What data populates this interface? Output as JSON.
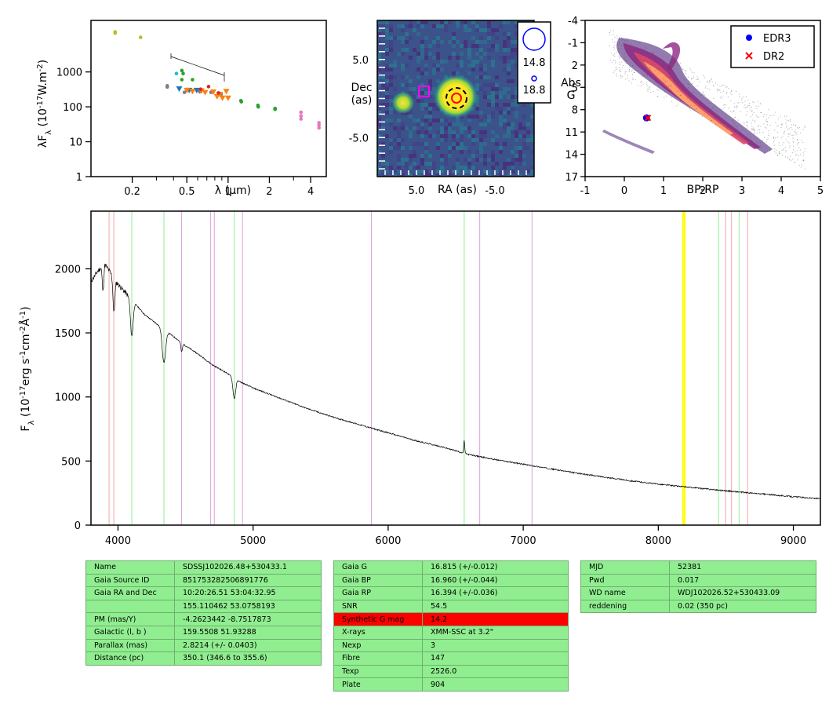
{
  "colors": {
    "sed_g": "#bcbd22",
    "sed_green": "#2ca02c",
    "sed_teal": "#17becf",
    "sed_gray": "#7f7f7f",
    "sed_orange": "#ff7f0e",
    "sed_blue": "#1f77b4",
    "sed_red": "#d62728",
    "sed_pink": "#e377c2",
    "line_pink": "#f4a6a6",
    "line_green": "#90ee90",
    "line_violet": "#dda0dd",
    "line_yellow": "#ffff00",
    "spectrum": "#000000",
    "table_bg": "#90ee90",
    "table_highlight": "#ff0000"
  },
  "charts": [
    {
      "id": "sed",
      "type": "scatter",
      "xlabel": "λ (μm)",
      "ylabel": "λF_λ (10^-17 W.m^-2)",
      "xscale": "log",
      "yscale": "log",
      "xlim": [
        0.1,
        5.2
      ],
      "ylim": [
        1,
        30000
      ],
      "xticks": [
        "0.2",
        "0.5",
        "1",
        "2",
        "4"
      ],
      "yticks": [
        "1",
        "10",
        "100",
        "1000"
      ],
      "series": [
        {
          "color": "sed_g",
          "marker": "o",
          "points": [
            [
              0.15,
              14000
            ],
            [
              0.15,
              13000
            ],
            [
              0.23,
              9800
            ]
          ]
        },
        {
          "color": "sed_teal",
          "marker": "o",
          "points": [
            [
              0.42,
              900
            ]
          ]
        },
        {
          "color": "sed_green",
          "marker": "o",
          "points": [
            [
              0.46,
              1100
            ],
            [
              0.47,
              900
            ],
            [
              0.46,
              600
            ],
            [
              0.55,
              600
            ],
            [
              1.24,
              150
            ],
            [
              1.25,
              140
            ],
            [
              1.65,
              110
            ],
            [
              1.66,
              100
            ],
            [
              2.2,
              90
            ],
            [
              2.2,
              85
            ]
          ]
        },
        {
          "color": "sed_gray",
          "marker": "o",
          "points": [
            [
              0.36,
              400
            ],
            [
              0.36,
              370
            ],
            [
              0.48,
              260
            ],
            [
              0.62,
              270
            ],
            [
              0.75,
              260
            ],
            [
              0.89,
              230
            ]
          ]
        },
        {
          "color": "sed_blue",
          "marker": "v",
          "points": [
            [
              0.44,
              330
            ],
            [
              0.52,
              300
            ],
            [
              0.59,
              300
            ]
          ]
        },
        {
          "color": "sed_orange",
          "marker": "v",
          "points": [
            [
              0.5,
              300
            ],
            [
              0.55,
              280
            ],
            [
              0.64,
              290
            ],
            [
              0.68,
              260
            ],
            [
              0.78,
              270
            ],
            [
              0.83,
              200
            ],
            [
              0.87,
              230
            ],
            [
              0.91,
              180
            ],
            [
              0.97,
              280
            ],
            [
              1.0,
              180
            ]
          ]
        },
        {
          "color": "sed_red",
          "marker": "o",
          "points": [
            [
              0.63,
              320
            ],
            [
              0.72,
              380
            ],
            [
              0.85,
              250
            ]
          ]
        },
        {
          "color": "sed_pink",
          "marker": "o",
          "points": [
            [
              3.4,
              70
            ],
            [
              3.4,
              55
            ],
            [
              3.4,
              45
            ],
            [
              4.6,
              35
            ],
            [
              4.6,
              30
            ],
            [
              4.6,
              25
            ]
          ]
        }
      ]
    },
    {
      "id": "image",
      "type": "heatmap",
      "xlabel": "RA (as)",
      "ylabel": "Dec\n(as)",
      "xlim": [
        10,
        -10
      ],
      "ylim": [
        -10,
        10
      ],
      "xticks": [
        "5.0",
        "-5.0"
      ],
      "yticks": [
        "5.0",
        "-5.0"
      ],
      "sources": [
        [
          0,
          2.2,
          "bright"
        ],
        [
          7,
          1.2,
          "faint"
        ]
      ],
      "markers": [
        {
          "type": "square",
          "x": 4,
          "y": 1,
          "color": "#ff00ff"
        },
        {
          "type": "dashed-circle",
          "x": 0,
          "y": 2.2,
          "color": "#000000"
        },
        {
          "type": "circle",
          "x": 0,
          "y": 2.2,
          "color": "#ff0000"
        }
      ],
      "legend": [
        "14.8",
        "18.8"
      ]
    },
    {
      "id": "hr",
      "type": "scatter",
      "xlabel": "BP-RP",
      "ylabel": "Abs\nG",
      "xlim": [
        -1,
        5
      ],
      "ylim": [
        17,
        -4
      ],
      "xticks": [
        "-1",
        "0",
        "1",
        "2",
        "3",
        "4",
        "5"
      ],
      "yticks": [
        "-4",
        "-1",
        "2",
        "5",
        "8",
        "11",
        "14",
        "17"
      ],
      "points": [
        {
          "name": "EDR3",
          "x": 0.566,
          "y": 9.1,
          "color": "#0000ff",
          "marker": "o"
        },
        {
          "name": "DR2",
          "x": 0.6,
          "y": 9.1,
          "color": "#ff0000",
          "marker": "x"
        }
      ],
      "legend": [
        {
          "label": "EDR3",
          "marker": "o",
          "color": "#0000ff"
        },
        {
          "label": "DR2",
          "marker": "x",
          "color": "#ff0000"
        }
      ]
    },
    {
      "id": "spectrum",
      "type": "line",
      "xlabel": "",
      "ylabel": "F_λ (10^-17 erg s^-1 cm^-2 Å^-1)",
      "xlim": [
        3800,
        9200
      ],
      "ylim": [
        0,
        2450
      ],
      "xticks": [
        "4000",
        "5000",
        "6000",
        "7000",
        "8000",
        "9000"
      ],
      "yticks": [
        "0",
        "500",
        "1000",
        "1500",
        "2000"
      ],
      "continuum": [
        [
          3800,
          1900
        ],
        [
          3850,
          1980
        ],
        [
          3900,
          2040
        ],
        [
          4000,
          1880
        ],
        [
          4100,
          1760
        ],
        [
          4200,
          1640
        ],
        [
          4300,
          1560
        ],
        [
          4400,
          1480
        ],
        [
          4500,
          1400
        ],
        [
          4600,
          1330
        ],
        [
          4700,
          1250
        ],
        [
          4800,
          1190
        ],
        [
          4900,
          1120
        ],
        [
          5000,
          1070
        ],
        [
          5200,
          990
        ],
        [
          5400,
          910
        ],
        [
          5600,
          840
        ],
        [
          5800,
          780
        ],
        [
          6000,
          720
        ],
        [
          6200,
          660
        ],
        [
          6400,
          610
        ],
        [
          6600,
          550
        ],
        [
          6800,
          510
        ],
        [
          7000,
          475
        ],
        [
          7200,
          440
        ],
        [
          7400,
          405
        ],
        [
          7600,
          375
        ],
        [
          7800,
          345
        ],
        [
          8000,
          320
        ],
        [
          8200,
          298
        ],
        [
          8400,
          278
        ],
        [
          8600,
          258
        ],
        [
          8800,
          240
        ],
        [
          9000,
          222
        ],
        [
          9200,
          205
        ]
      ],
      "absorption": [
        [
          3889,
          0.1,
          8
        ],
        [
          3970,
          0.14,
          10
        ],
        [
          4102,
          0.16,
          14
        ],
        [
          4340,
          0.17,
          18
        ],
        [
          4471,
          0.05,
          8
        ],
        [
          4861,
          0.14,
          14
        ]
      ],
      "emission": [
        [
          6563,
          0.18,
          5
        ],
        [
          4686,
          0.0,
          5
        ]
      ],
      "vlines_pink": [
        3934,
        3969,
        8498,
        8542,
        8662
      ],
      "vlines_green": [
        4102,
        4340,
        4861,
        6563,
        8446,
        8598
      ],
      "vlines_violet": [
        4471,
        4686,
        4713,
        4922,
        5876,
        6678,
        7065
      ],
      "vlines_yellow": [
        8183,
        8195
      ]
    }
  ],
  "tables": [
    {
      "rows": [
        [
          "Name",
          "SDSSJ102026.48+530433.1"
        ],
        [
          "Gaia Source ID",
          "851753282506891776"
        ],
        [
          "Gaia RA and Dec",
          "10:20:26.51    53:04:32.95"
        ],
        [
          "",
          "155.110462    53.0758193"
        ],
        [
          "PM (mas/Y)",
          "-4.2623442    -8.7517873"
        ],
        [
          "Galactic (l, b )",
          "159.5508    51.93288"
        ],
        [
          "Parallax (mas)",
          "2.8214 (+/- 0.0403)"
        ],
        [
          "Distance (pc)",
          "350.1 (346.6 to 355.6)"
        ]
      ]
    },
    {
      "rows": [
        [
          "Gaia G",
          "16.815 (+/-0.012)"
        ],
        [
          "Gaia BP",
          "16.960 (+/-0.044)"
        ],
        [
          "Gaia RP",
          "16.394 (+/-0.036)"
        ],
        [
          "SNR",
          "54.5"
        ],
        [
          "Synthetic G mag",
          "14.2"
        ],
        [
          "X-rays",
          "XMM-SSC at 3.2\""
        ],
        [
          "Nexp",
          "3"
        ],
        [
          "Fibre",
          "147"
        ],
        [
          "Texp",
          "2526.0"
        ],
        [
          "Plate",
          "904"
        ]
      ],
      "highlight_row": 4
    },
    {
      "rows": [
        [
          "MJD",
          "52381"
        ],
        [
          "Pwd",
          "0.017"
        ],
        [
          "WD name",
          "WDJ102026.52+530433.09"
        ],
        [
          "reddening",
          "0.02 (350 pc)"
        ]
      ]
    }
  ]
}
